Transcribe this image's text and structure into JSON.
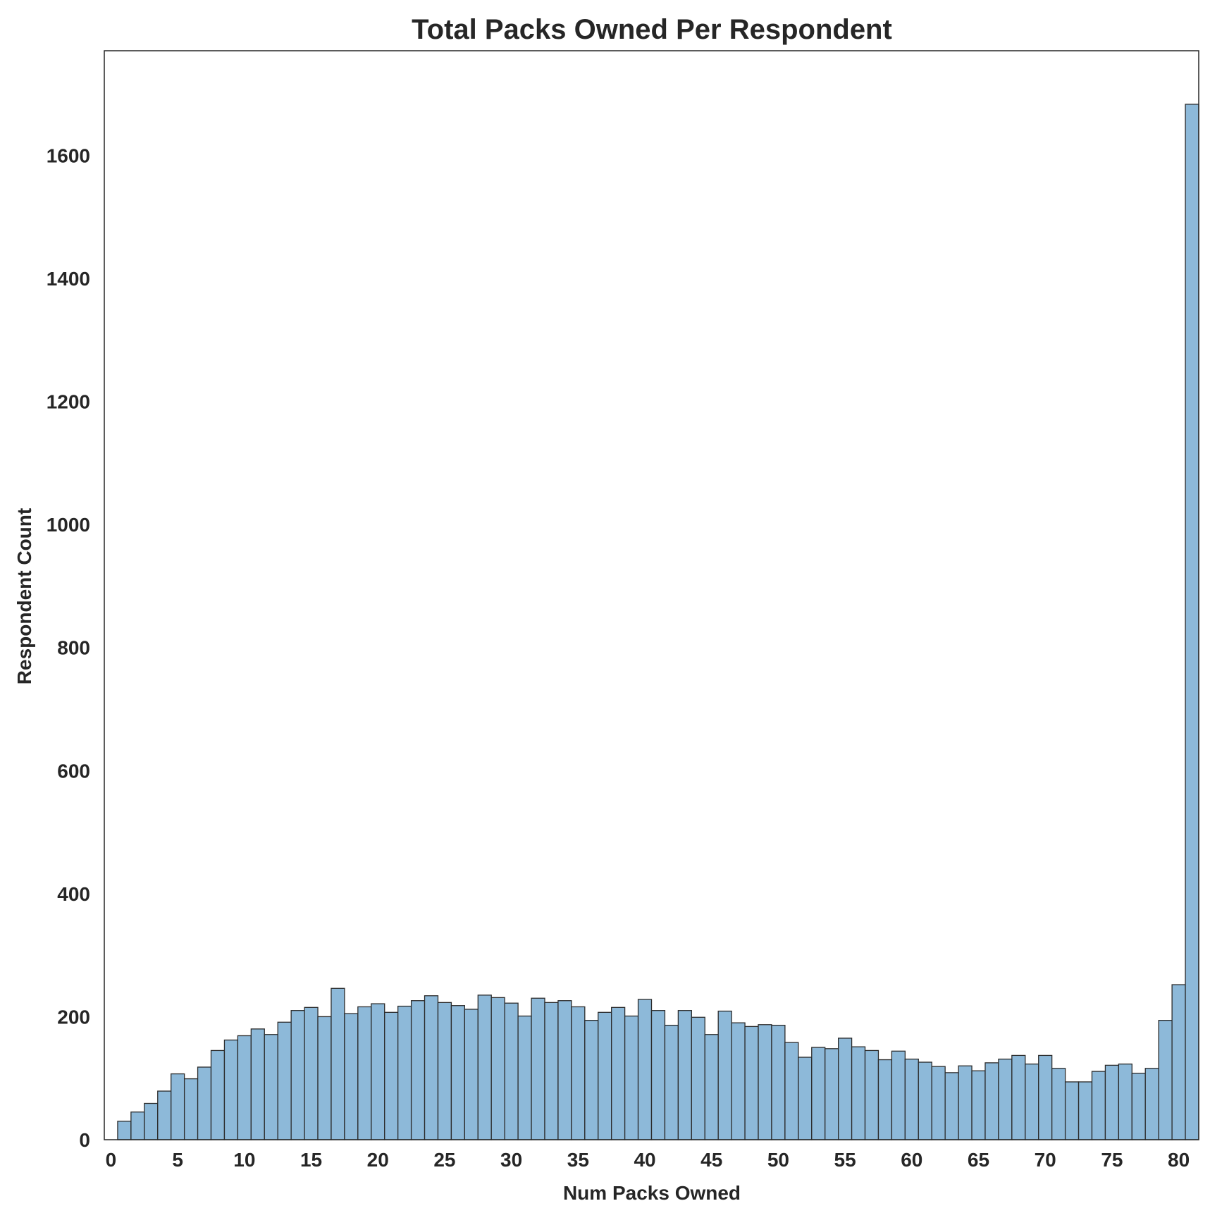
{
  "chart_data": {
    "type": "bar",
    "title": "Total Packs Owned Per Respondent",
    "xlabel": "Num Packs Owned",
    "ylabel": "Respondent Count",
    "xlim": [
      -0.5,
      81.5
    ],
    "ylim": [
      0,
      1770
    ],
    "x_ticks": [
      0,
      5,
      10,
      15,
      20,
      25,
      30,
      35,
      40,
      45,
      50,
      55,
      60,
      65,
      70,
      75,
      80
    ],
    "y_ticks": [
      0,
      200,
      400,
      600,
      800,
      1000,
      1200,
      1400,
      1600
    ],
    "grid": false,
    "bar_color": "#8db9d9",
    "edge_color": "#2b2b2b",
    "series": [
      {
        "x": [
          1,
          2,
          3,
          4,
          5,
          6,
          7,
          8,
          9,
          10,
          11,
          12,
          13,
          14,
          15,
          16,
          17,
          18,
          19,
          20,
          21,
          22,
          23,
          24,
          25,
          26,
          27,
          28,
          29,
          30,
          31,
          32,
          33,
          34,
          35,
          36,
          37,
          38,
          39,
          40,
          41,
          42,
          43,
          44,
          45,
          46,
          47,
          48,
          49,
          50,
          51,
          52,
          53,
          54,
          55,
          56,
          57,
          58,
          59,
          60,
          61,
          62,
          63,
          64,
          65,
          66,
          67,
          68,
          69,
          70,
          71,
          72,
          73,
          74,
          75,
          76,
          77,
          78,
          79,
          80,
          81
        ],
        "values": [
          30,
          45,
          59,
          79,
          107,
          99,
          118,
          145,
          162,
          169,
          180,
          171,
          191,
          210,
          215,
          200,
          246,
          205,
          216,
          221,
          207,
          217,
          226,
          234,
          223,
          218,
          212,
          235,
          231,
          222,
          201,
          230,
          223,
          226,
          216,
          194,
          207,
          215,
          201,
          228,
          210,
          186,
          210,
          199,
          171,
          209,
          190,
          184,
          187,
          186,
          158,
          134,
          150,
          148,
          165,
          151,
          145,
          130,
          144,
          131,
          126,
          119,
          109,
          120,
          112,
          125,
          131,
          137,
          123,
          137,
          116,
          94,
          94,
          111,
          121,
          123,
          108,
          116,
          194,
          252,
          1683
        ]
      }
    ]
  }
}
